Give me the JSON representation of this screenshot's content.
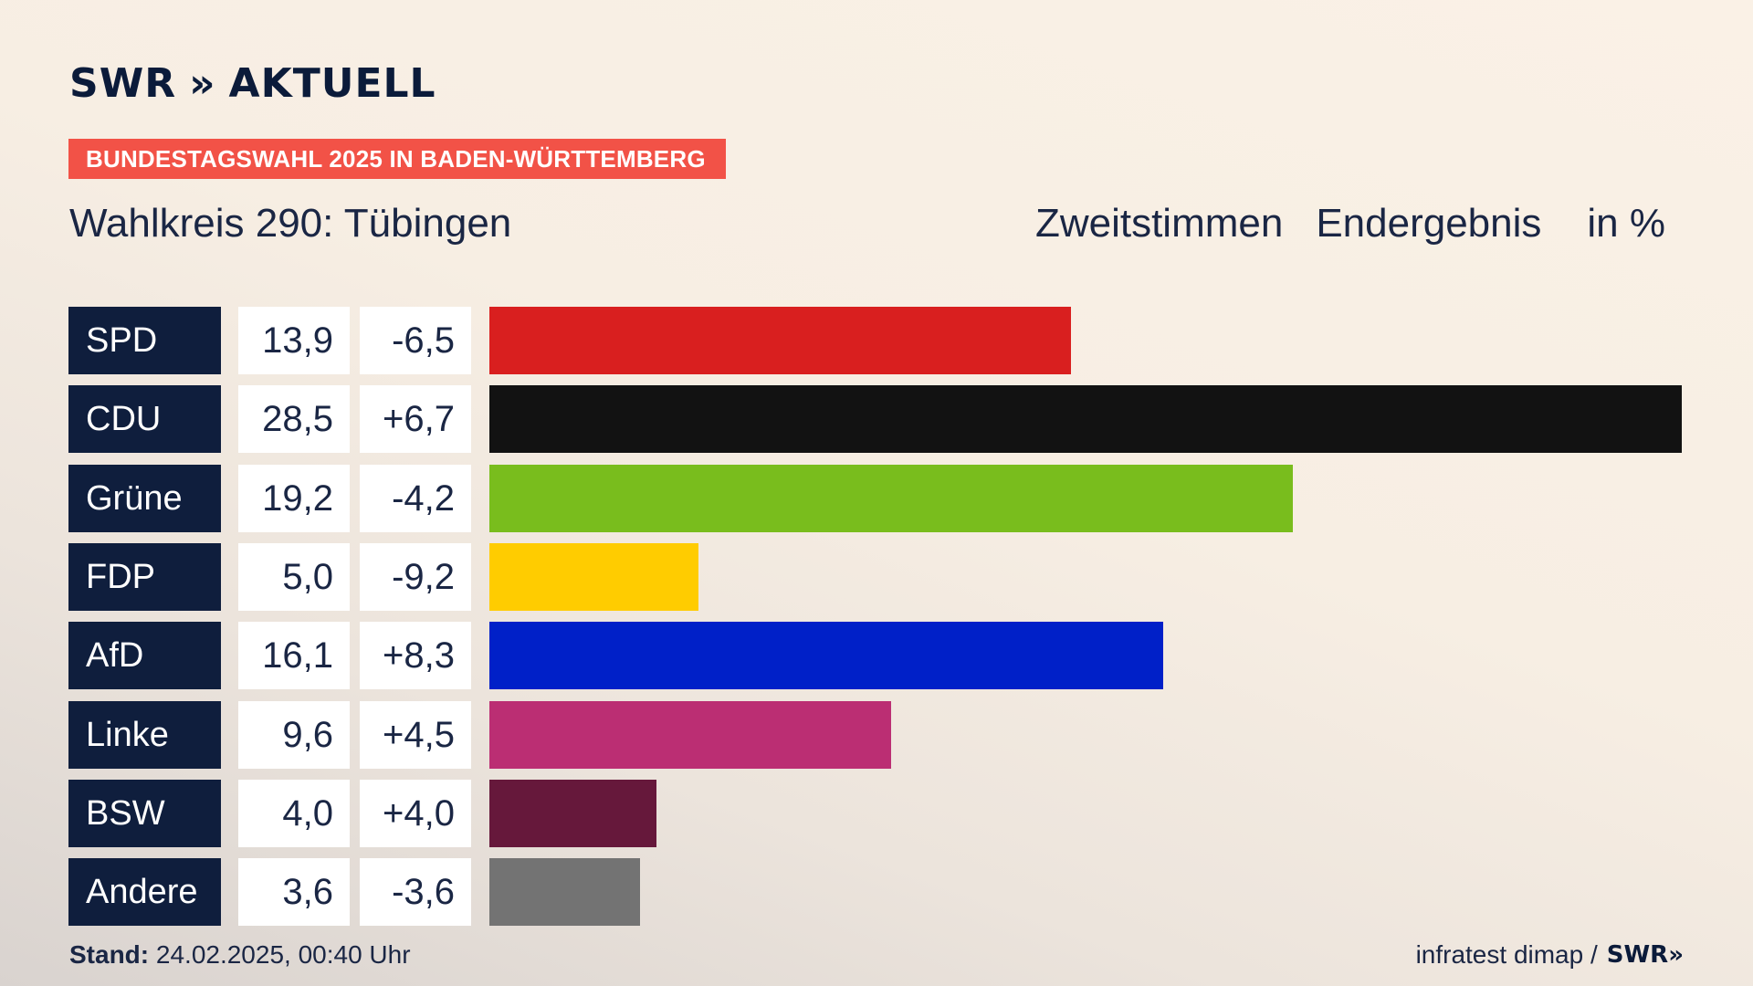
{
  "header": {
    "logo_text": "SWR",
    "logo_chevrons": "»",
    "logo_suffix": "AKTUELL",
    "banner": "BUNDESTAGSWAHL 2025 IN BADEN-WÜRTTEMBERG",
    "subtitle": "Wahlkreis 290: Tübingen",
    "meta_1": "Zweitstimmen",
    "meta_2": "Endergebnis",
    "meta_3": "in %"
  },
  "footer": {
    "stand_label": "Stand:",
    "stand_value": "24.02.2025, 00:40 Uhr",
    "source": "infratest dimap /",
    "brand": "SWR»"
  },
  "chart_data": {
    "type": "bar",
    "orientation": "horizontal",
    "categories": [
      "SPD",
      "CDU",
      "Grüne",
      "FDP",
      "AfD",
      "Linke",
      "BSW",
      "Andere"
    ],
    "values": [
      13.9,
      28.5,
      19.2,
      5.0,
      16.1,
      9.6,
      4.0,
      3.6
    ],
    "value_labels": [
      "13,9",
      "28,5",
      "19,2",
      "5,0",
      "16,1",
      "9,6",
      "4,0",
      "3,6"
    ],
    "differences": [
      -6.5,
      6.7,
      -4.2,
      -9.2,
      8.3,
      4.5,
      4.0,
      -3.6
    ],
    "difference_labels": [
      "-6,5",
      "+6,7",
      "-4,2",
      "-9,2",
      "+8,3",
      "+4,5",
      "+4,0",
      "-3,6"
    ],
    "colors": [
      "#d91f1f",
      "#121212",
      "#79bd1d",
      "#ffcc00",
      "#0020c8",
      "#bb2e73",
      "#66183b",
      "#737373"
    ],
    "xlim": [
      0,
      28.5
    ],
    "grid": false,
    "legend": "none"
  }
}
